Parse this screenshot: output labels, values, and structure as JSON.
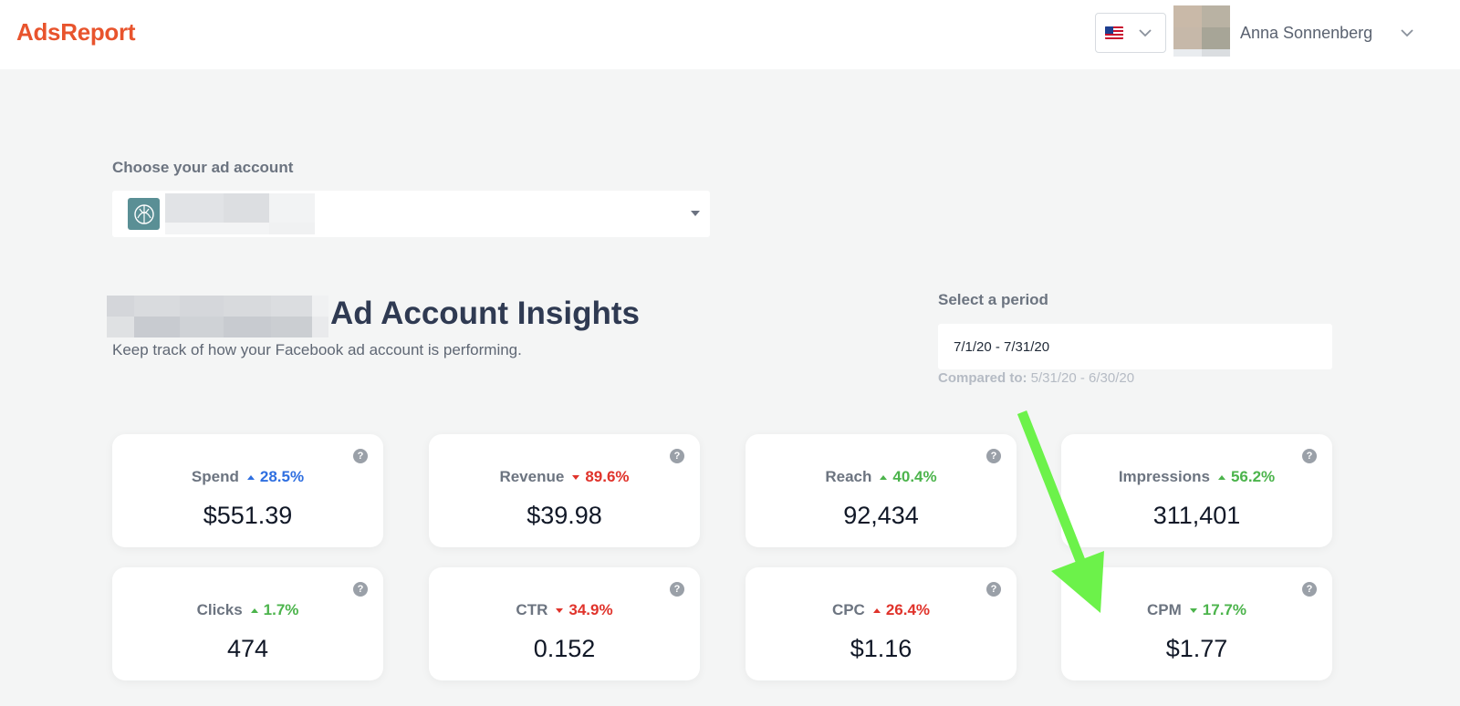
{
  "header": {
    "logo": "AdsReport",
    "language_icon": "us-flag-icon",
    "user_name": "Anna Sonnenberg"
  },
  "account": {
    "label": "Choose your ad account"
  },
  "insights": {
    "title": "Ad Account Insights",
    "subtitle": "Keep track of how your Facebook ad account is performing."
  },
  "period": {
    "label": "Select a period",
    "value": "7/1/20 - 7/31/20",
    "compared_label": "Compared to:",
    "compared_value": "5/31/20 - 6/30/20"
  },
  "colors": {
    "brand": "#e8542d",
    "blue": "#2f6fe0",
    "green": "#4cb44c",
    "red": "#e0332b",
    "arrow": "#6cf24a"
  },
  "metrics": [
    {
      "name": "Spend",
      "change": "28.5%",
      "direction": "up",
      "color": "blue",
      "value": "$551.39"
    },
    {
      "name": "Revenue",
      "change": "89.6%",
      "direction": "down",
      "color": "red",
      "value": "$39.98"
    },
    {
      "name": "Reach",
      "change": "40.4%",
      "direction": "up",
      "color": "green",
      "value": "92,434"
    },
    {
      "name": "Impressions",
      "change": "56.2%",
      "direction": "up",
      "color": "green",
      "value": "311,401"
    },
    {
      "name": "Clicks",
      "change": "1.7%",
      "direction": "up",
      "color": "green",
      "value": "474"
    },
    {
      "name": "CTR",
      "change": "34.9%",
      "direction": "down",
      "color": "red",
      "value": "0.152"
    },
    {
      "name": "CPC",
      "change": "26.4%",
      "direction": "up",
      "color": "red",
      "value": "$1.16"
    },
    {
      "name": "CPM",
      "change": "17.7%",
      "direction": "down",
      "color": "green",
      "value": "$1.77"
    }
  ]
}
